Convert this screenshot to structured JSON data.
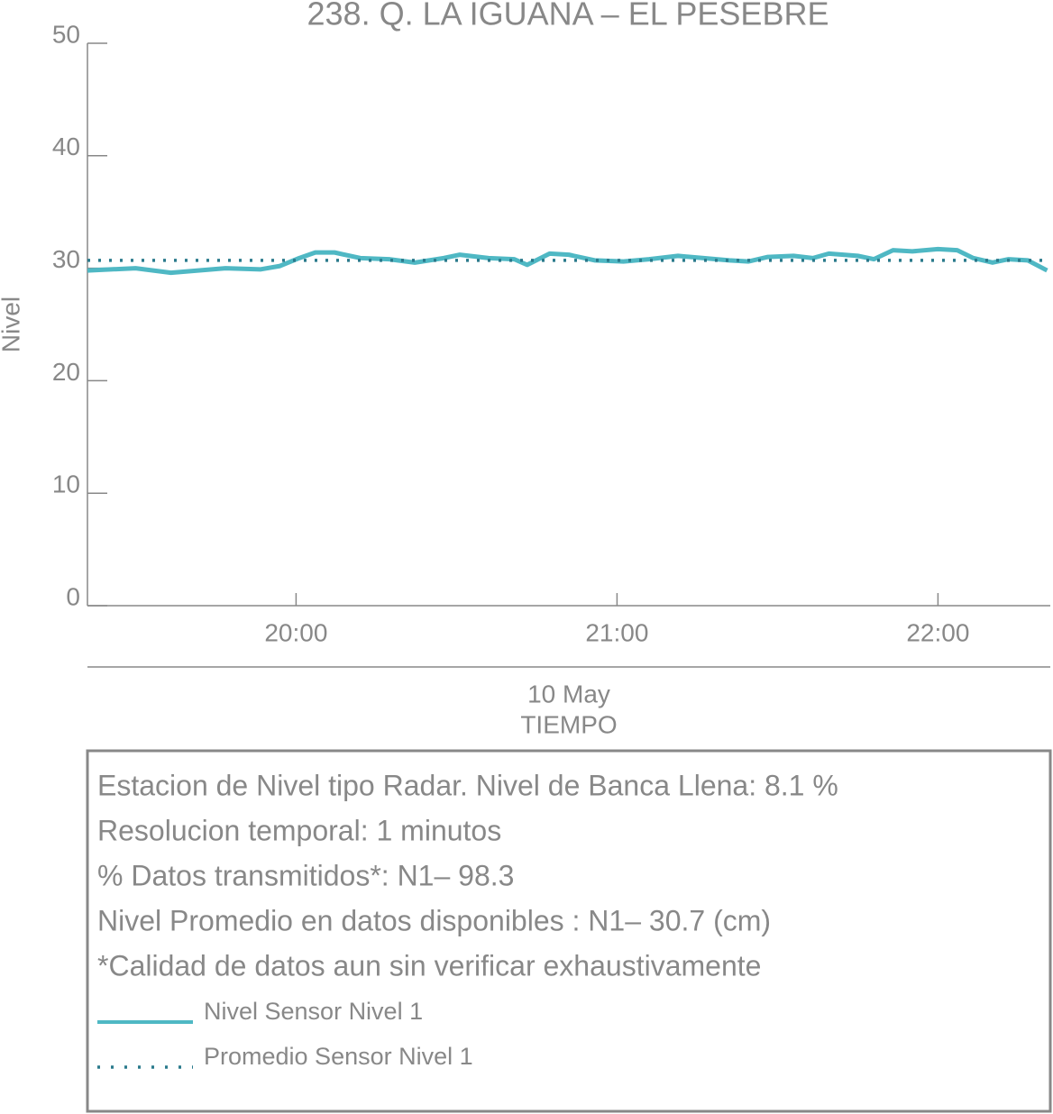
{
  "chart_data": {
    "type": "line",
    "title": "238. Q. LA IGUANA – EL PESEBRE",
    "ylabel": "Nivel",
    "xlabel": "TIEMPO",
    "date_label": "10 May",
    "x": [
      19.35,
      19.5,
      19.61,
      19.78,
      19.89,
      19.95,
      20.01,
      20.06,
      20.12,
      20.2,
      20.29,
      20.37,
      20.46,
      20.51,
      20.6,
      20.68,
      20.72,
      20.79,
      20.85,
      20.93,
      21.02,
      21.1,
      21.19,
      21.27,
      21.35,
      21.41,
      21.47,
      21.55,
      21.61,
      21.66,
      21.75,
      21.8,
      21.86,
      21.92,
      22.0,
      22.06,
      22.11,
      22.17,
      22.22,
      22.28,
      22.34
    ],
    "series": [
      {
        "name": "Nivel Sensor Nivel 1",
        "color": "#4fb8c4",
        "style": "solid",
        "values": [
          29.8,
          30.0,
          29.6,
          30.0,
          29.9,
          30.2,
          30.9,
          31.4,
          31.4,
          30.9,
          30.8,
          30.5,
          30.9,
          31.2,
          30.9,
          30.8,
          30.3,
          31.3,
          31.2,
          30.7,
          30.6,
          30.8,
          31.1,
          30.9,
          30.7,
          30.6,
          31.0,
          31.1,
          30.9,
          31.3,
          31.1,
          30.8,
          31.6,
          31.5,
          31.7,
          31.6,
          30.9,
          30.5,
          30.8,
          30.7,
          29.8
        ]
      },
      {
        "name": "Promedio Sensor Nivel 1",
        "color": "#2a7a8c",
        "style": "dotted",
        "value": 30.7
      }
    ],
    "xlim": [
      19.35,
      22.35
    ],
    "xticks": [
      {
        "value": 20,
        "label": "20:00"
      },
      {
        "value": 21,
        "label": "21:00"
      },
      {
        "value": 22,
        "label": "22:00"
      }
    ],
    "ylim": [
      0,
      50
    ],
    "yticks": [
      0,
      10,
      20,
      30,
      40,
      50
    ],
    "info": [
      "Estacion de Nivel tipo Radar. Nivel de Banca Llena:  8.1 %",
      "Resolucion temporal: 1 minutos",
      "% Datos transmitidos*: N1– 98.3",
      "Nivel Promedio en datos disponibles : N1– 30.7 (cm)",
      "*Calidad de datos aun sin verificar exhaustivamente"
    ]
  }
}
